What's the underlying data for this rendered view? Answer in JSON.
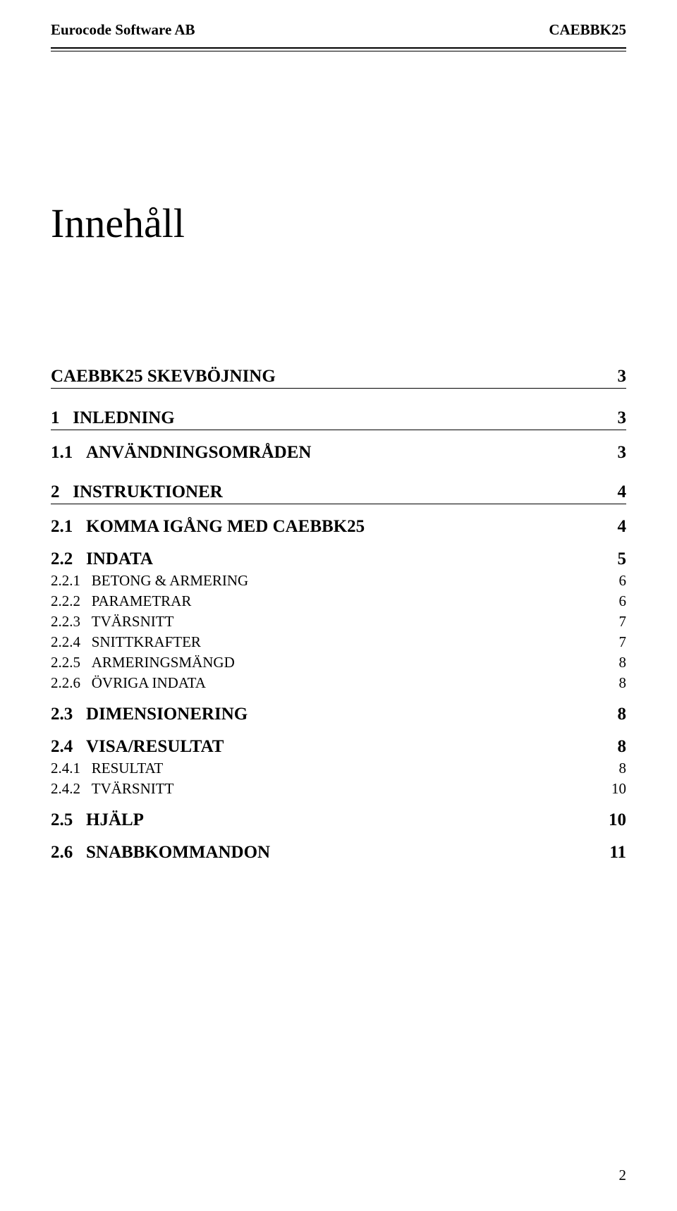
{
  "header": {
    "left": "Eurocode Software AB",
    "right": "CAEBBK25"
  },
  "title": "Innehåll",
  "toc": [
    {
      "level": 0,
      "num": "",
      "text": "CAEBBK25 SKEVBÖJNING",
      "page": "3"
    },
    {
      "level": 0,
      "num": "1",
      "text": "INLEDNING",
      "page": "3"
    },
    {
      "level": 1,
      "num": "1.1",
      "text": "ANVÄNDNINGSOMRÅDEN",
      "page": "3",
      "smallcaps": true
    },
    {
      "level": 0,
      "num": "2",
      "text": "INSTRUKTIONER",
      "page": "4"
    },
    {
      "level": 1,
      "num": "2.1",
      "text": "KOMMA IGÅNG MED CAEBBK25",
      "page": "4",
      "smallcaps": true
    },
    {
      "level": 1,
      "num": "2.2",
      "text": "INDATA",
      "page": "5",
      "smallcaps": true
    },
    {
      "level": 2,
      "num": "2.2.1",
      "text": "BETONG & ARMERING",
      "page": "6",
      "smallcaps": true
    },
    {
      "level": 2,
      "num": "2.2.2",
      "text": "PARAMETRAR",
      "page": "6",
      "smallcaps": true
    },
    {
      "level": 2,
      "num": "2.2.3",
      "text": "TVÄRSNITT",
      "page": "7",
      "smallcaps": true
    },
    {
      "level": 2,
      "num": "2.2.4",
      "text": "SNITTKRAFTER",
      "page": "7",
      "smallcaps": true
    },
    {
      "level": 2,
      "num": "2.2.5",
      "text": "ARMERINGSMÄNGD",
      "page": "8",
      "smallcaps": true
    },
    {
      "level": 2,
      "num": "2.2.6",
      "text": "ÖVRIGA INDATA",
      "page": "8",
      "smallcaps": true
    },
    {
      "level": 1,
      "num": "2.3",
      "text": "DIMENSIONERING",
      "page": "8",
      "smallcaps": true
    },
    {
      "level": 1,
      "num": "2.4",
      "text": "VISA/RESULTAT",
      "page": "8",
      "smallcaps": true
    },
    {
      "level": 2,
      "num": "2.4.1",
      "text": "RESULTAT",
      "page": "8",
      "smallcaps": true
    },
    {
      "level": 2,
      "num": "2.4.2",
      "text": "TVÄRSNITT",
      "page": "10",
      "smallcaps": true
    },
    {
      "level": 1,
      "num": "2.5",
      "text": "HJÄLP",
      "page": "10",
      "smallcaps": true
    },
    {
      "level": 1,
      "num": "2.6",
      "text": "SNABBKOMMANDON",
      "page": "11",
      "smallcaps": true
    }
  ],
  "pageNumber": "2"
}
